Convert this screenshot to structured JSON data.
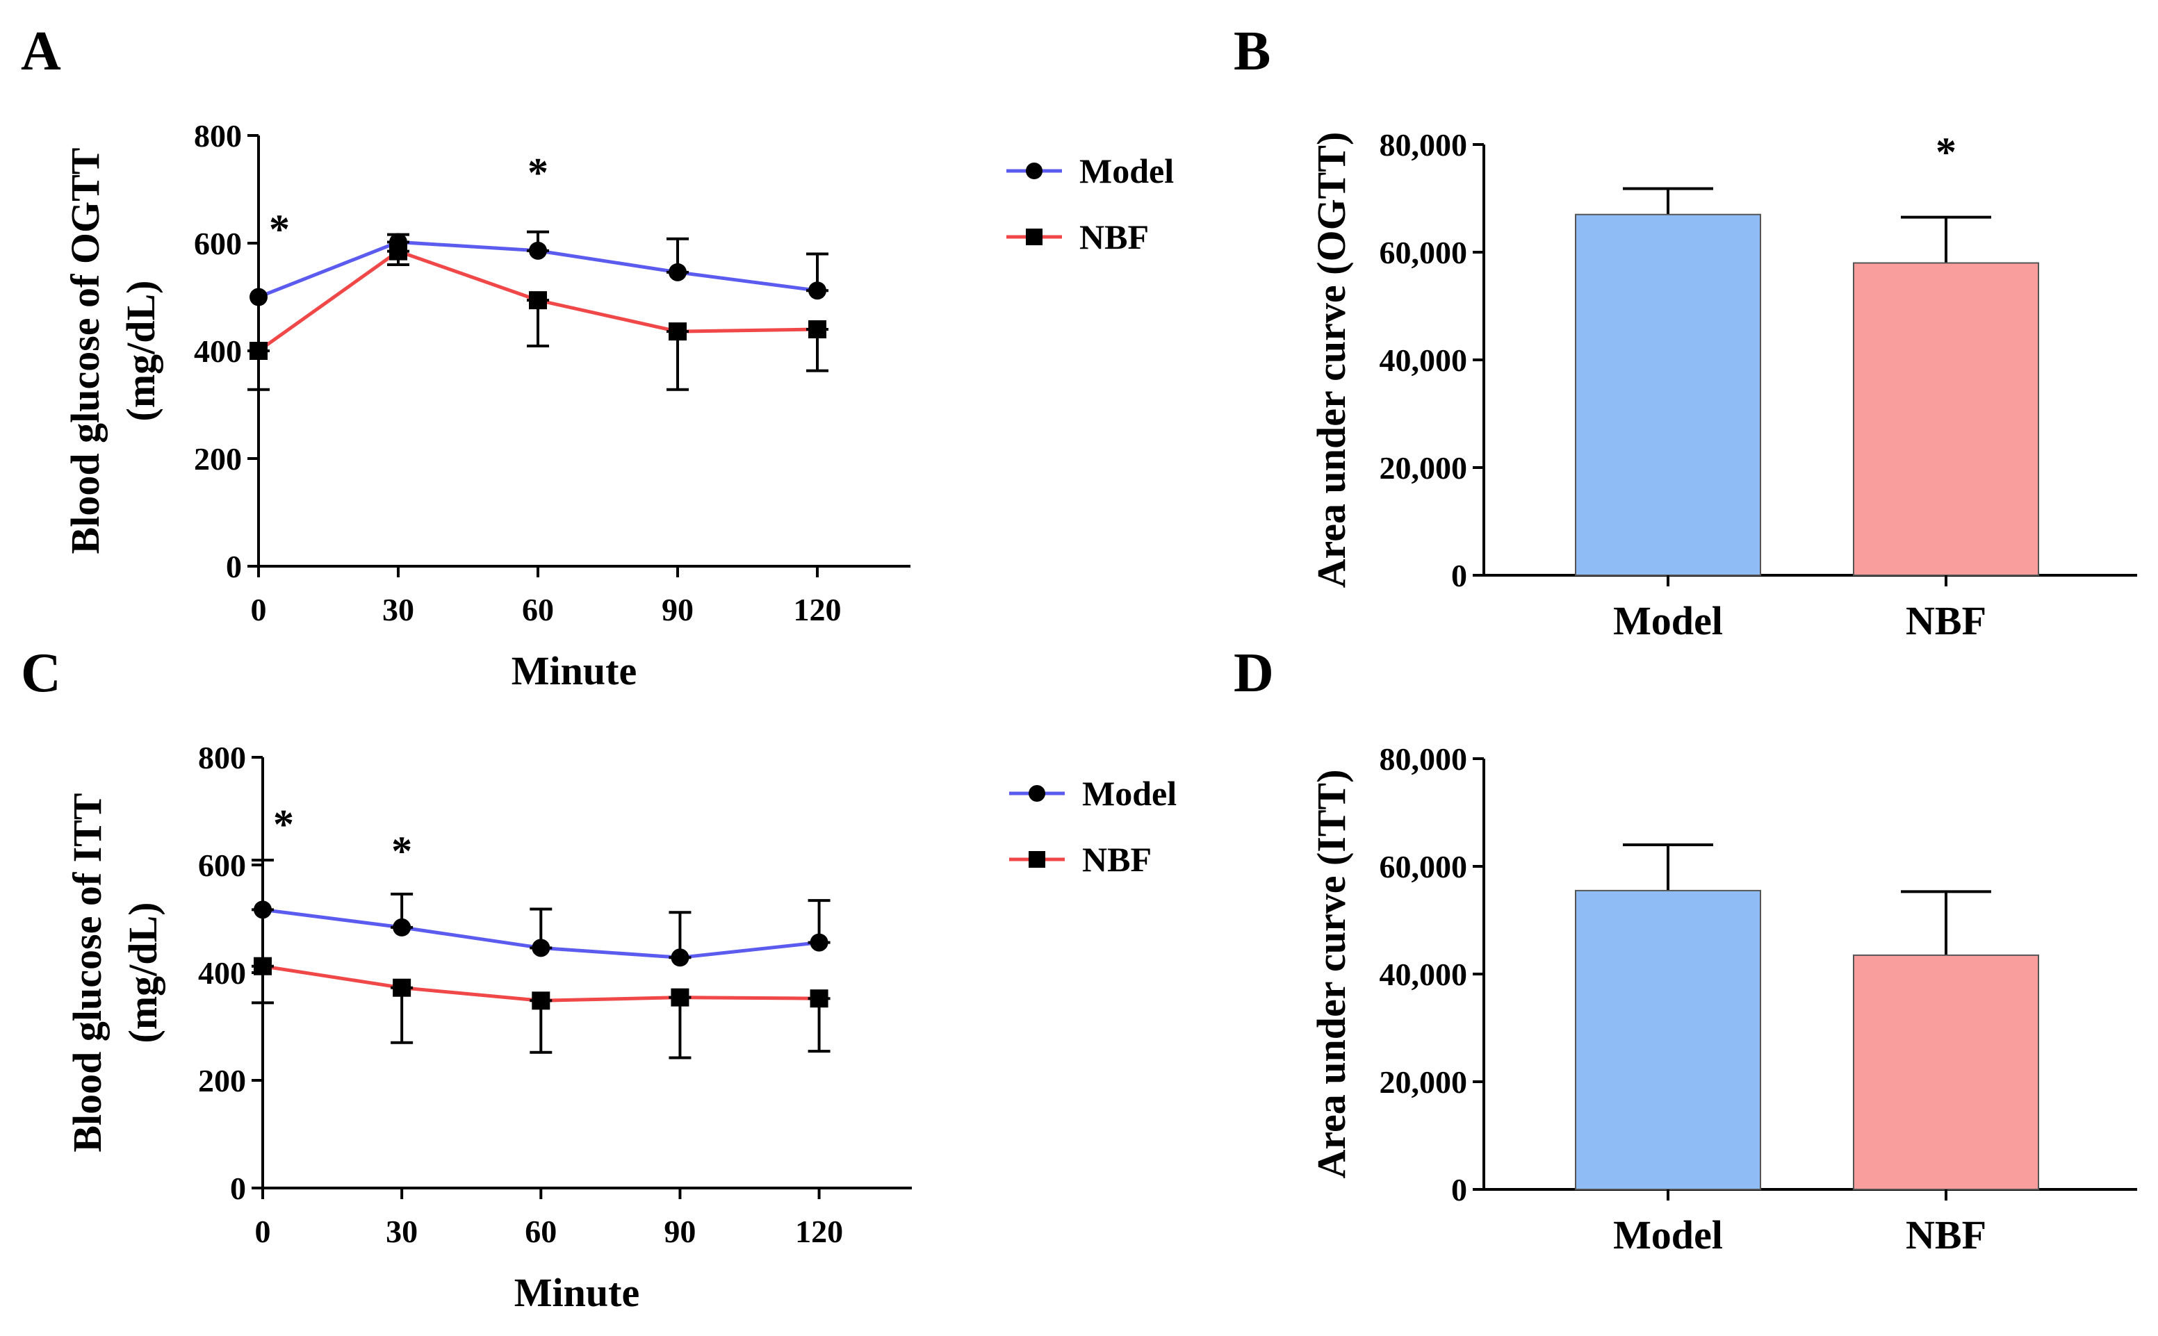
{
  "figure": {
    "panel_labels": [
      "A",
      "B",
      "C",
      "D"
    ]
  },
  "chart_data": [
    {
      "id": "A",
      "type": "line",
      "panel_label": "A",
      "xlabel": "Minute",
      "ylabel_line1": "Blood glucose of OGTT",
      "ylabel_line2": "(mg/dL)",
      "x": [
        0,
        30,
        60,
        90,
        120
      ],
      "x_tick_labels": [
        "0",
        "30",
        "60",
        "90",
        "120"
      ],
      "ylim": [
        0,
        800
      ],
      "y_ticks": [
        0,
        200,
        400,
        600,
        800
      ],
      "y_tick_labels": [
        "0",
        "200",
        "400",
        "600",
        "800"
      ],
      "xlim": [
        0,
        140
      ],
      "series": [
        {
          "name": "Model",
          "color": "#5b5bf0",
          "marker": "circle",
          "values": [
            500,
            602,
            586,
            546,
            512
          ],
          "err": [
            0,
            14,
            35,
            62,
            68
          ]
        },
        {
          "name": "NBF",
          "color": "#f04848",
          "marker": "square",
          "values": [
            400,
            585,
            494,
            436,
            440
          ],
          "err": [
            72,
            25,
            85,
            108,
            77
          ]
        }
      ],
      "significance": [
        {
          "x": 0,
          "y_value": 600,
          "text": "*"
        },
        {
          "x": 60,
          "y_value": 705,
          "text": "*"
        }
      ],
      "legend": "right"
    },
    {
      "id": "B",
      "type": "bar",
      "panel_label": "B",
      "ylabel": "Area under curve (OGTT)",
      "categories": [
        "Model",
        "NBF"
      ],
      "values": [
        67000,
        58000
      ],
      "err": [
        4800,
        8500
      ],
      "colors": [
        "#8fbcf4",
        "#fa9d9d"
      ],
      "ylim": [
        0,
        80000
      ],
      "y_ticks": [
        0,
        20000,
        40000,
        60000,
        80000
      ],
      "y_tick_labels": [
        "0",
        "20,000",
        "40,000",
        "60,000",
        "80,000"
      ],
      "significance": [
        {
          "category": "NBF",
          "y_value": 76000,
          "text": "*"
        }
      ]
    },
    {
      "id": "C",
      "type": "line",
      "panel_label": "C",
      "xlabel": "Minute",
      "ylabel_line1": "Blood glucose of ITT",
      "ylabel_line2": "(mg/dL)",
      "x": [
        0,
        30,
        60,
        90,
        120
      ],
      "x_tick_labels": [
        "0",
        "30",
        "60",
        "90",
        "120"
      ],
      "ylim": [
        0,
        800
      ],
      "y_ticks": [
        0,
        200,
        400,
        600,
        800
      ],
      "y_tick_labels": [
        "0",
        "200",
        "400",
        "600",
        "800"
      ],
      "xlim": [
        0,
        140
      ],
      "series": [
        {
          "name": "Model",
          "color": "#5b5bf0",
          "marker": "circle",
          "values": [
            517,
            484,
            446,
            428,
            456
          ],
          "err": [
            92,
            62,
            72,
            84,
            78
          ]
        },
        {
          "name": "NBF",
          "color": "#f04848",
          "marker": "square",
          "values": [
            412,
            372,
            348,
            354,
            352
          ],
          "err": [
            68,
            102,
            96,
            112,
            98
          ]
        }
      ],
      "significance": [
        {
          "x": 0,
          "y_value": 650,
          "text": "*"
        },
        {
          "x": 30,
          "y_value": 600,
          "text": "*"
        }
      ],
      "legend": "right"
    },
    {
      "id": "D",
      "type": "bar",
      "panel_label": "D",
      "ylabel": "Area under curve (ITT)",
      "categories": [
        "Model",
        "NBF"
      ],
      "values": [
        55500,
        43500
      ],
      "err": [
        8500,
        11800
      ],
      "colors": [
        "#8fbcf4",
        "#fa9d9d"
      ],
      "ylim": [
        0,
        80000
      ],
      "y_ticks": [
        0,
        20000,
        40000,
        60000,
        80000
      ],
      "y_tick_labels": [
        "0",
        "20,000",
        "40,000",
        "60,000",
        "80,000"
      ],
      "significance": []
    }
  ]
}
